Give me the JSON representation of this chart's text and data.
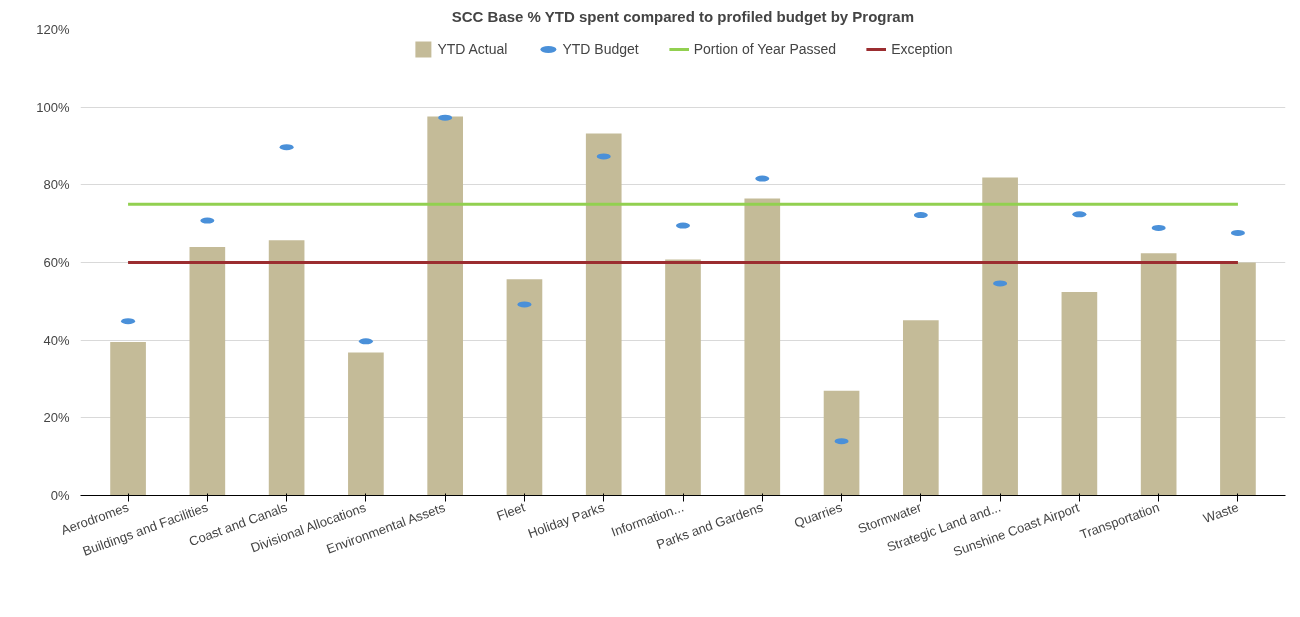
{
  "chart_data": {
    "type": "bar",
    "title": "SCC Base % YTD spent compared to profiled budget by Program",
    "categories": [
      "Aerodromes",
      "Buildings and Facilities",
      "Coast and Canals",
      "Divisional Allocations",
      "Environmental Assets",
      "Fleet",
      "Holiday Parks",
      "Information...",
      "Parks and Gardens",
      "Quarries",
      "Stormwater",
      "Strategic Land and...",
      "Sunshine Coast Airport",
      "Transportation",
      "Waste"
    ],
    "series": [
      {
        "name": "YTD Actual",
        "color": "#c4bb98",
        "values": [
          39.5,
          64,
          65.7,
          36.8,
          97.6,
          55.7,
          93.2,
          60.8,
          76.5,
          27,
          45.1,
          81.9,
          52.4,
          62.4,
          60
        ]
      },
      {
        "name": "YTD Budget",
        "type": "scatter",
        "color": "#4a90d9",
        "x": [
          "Aerodromes",
          "Buildings and Facilities",
          "Coast and Canals",
          "Divisional Allocations",
          "Environmental Assets",
          "Fleet",
          "Holiday Parks",
          "Information...",
          "Parks and Gardens",
          "Quarries",
          "Stormwater",
          "Strategic Land and...",
          "Sunshine Coast Airport",
          "Transportation",
          "Waste"
        ],
        "values": [
          44.9,
          70.8,
          89.7,
          39.7,
          97.3,
          49.2,
          87.3,
          69.5,
          81.6,
          14,
          72.2,
          54.6,
          72.4,
          68.9,
          67.6
        ]
      },
      {
        "name": "Portion of Year Passed",
        "type": "line",
        "color": "#92d050",
        "values": [
          75,
          75,
          75,
          75,
          75,
          75,
          75,
          75,
          75,
          75,
          75,
          75,
          75,
          75,
          75
        ]
      },
      {
        "name": "Exception",
        "type": "line",
        "color": "#9b2d30",
        "values": [
          60,
          60,
          60,
          60,
          60,
          60,
          60,
          60,
          60,
          60,
          60,
          60,
          60,
          60,
          60
        ]
      }
    ],
    "ylim": [
      0,
      120
    ],
    "yticks": [
      {
        "value": 0,
        "label": "0%"
      },
      {
        "value": 20,
        "label": "20%"
      },
      {
        "value": 40,
        "label": "40%"
      },
      {
        "value": 60,
        "label": "60%"
      },
      {
        "value": 80,
        "label": "80%"
      },
      {
        "value": 100,
        "label": "100%"
      },
      {
        "value": 120,
        "label": "120%"
      }
    ],
    "grid": "y",
    "legend": "top"
  }
}
